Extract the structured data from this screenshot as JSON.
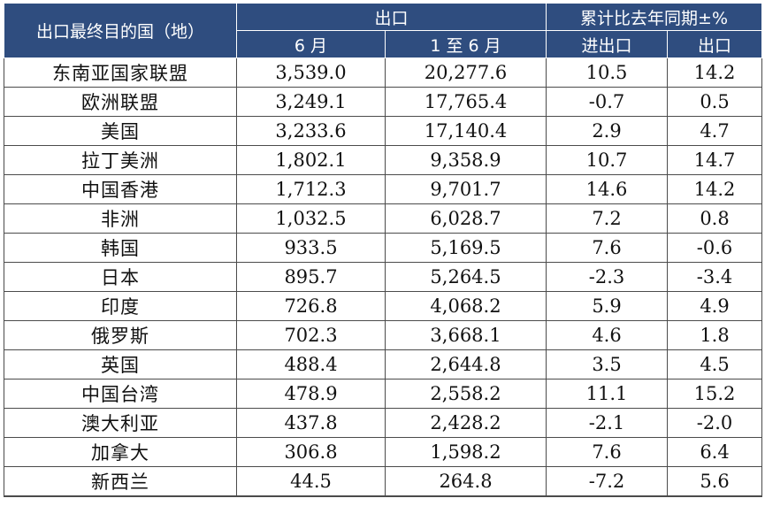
{
  "header": {
    "region": "出口最终目的国（地）",
    "export_group": "出口",
    "yoy_group": "累计比去年同期±%",
    "col_june": "6 月",
    "col_jan_june": "1 至 6 月",
    "col_trade": "进出口",
    "col_export": "出口"
  },
  "rows": [
    {
      "region": "东南亚国家联盟",
      "june": "3,539.0",
      "jan_june": "20,277.6",
      "trade": "10.5",
      "export": "14.2"
    },
    {
      "region": "欧洲联盟",
      "june": "3,249.1",
      "jan_june": "17,765.4",
      "trade": "-0.7",
      "export": "0.5"
    },
    {
      "region": "美国",
      "june": "3,233.6",
      "jan_june": "17,140.4",
      "trade": "2.9",
      "export": "4.7"
    },
    {
      "region": "拉丁美洲",
      "june": "1,802.1",
      "jan_june": "9,358.9",
      "trade": "10.7",
      "export": "14.7"
    },
    {
      "region": "中国香港",
      "june": "1,712.3",
      "jan_june": "9,701.7",
      "trade": "14.6",
      "export": "14.2"
    },
    {
      "region": "非洲",
      "june": "1,032.5",
      "jan_june": "6,028.7",
      "trade": "7.2",
      "export": "0.8"
    },
    {
      "region": "韩国",
      "june": "933.5",
      "jan_june": "5,169.5",
      "trade": "7.6",
      "export": "-0.6"
    },
    {
      "region": "日本",
      "june": "895.7",
      "jan_june": "5,264.5",
      "trade": "-2.3",
      "export": "-3.4"
    },
    {
      "region": "印度",
      "june": "726.8",
      "jan_june": "4,068.2",
      "trade": "5.9",
      "export": "4.9"
    },
    {
      "region": "俄罗斯",
      "june": "702.3",
      "jan_june": "3,668.1",
      "trade": "4.6",
      "export": "1.8"
    },
    {
      "region": "英国",
      "june": "488.4",
      "jan_june": "2,644.8",
      "trade": "3.5",
      "export": "4.5"
    },
    {
      "region": "中国台湾",
      "june": "478.9",
      "jan_june": "2,558.2",
      "trade": "11.1",
      "export": "15.2"
    },
    {
      "region": "澳大利亚",
      "june": "437.8",
      "jan_june": "2,428.2",
      "trade": "-2.1",
      "export": "-2.0"
    },
    {
      "region": "加拿大",
      "june": "306.8",
      "jan_june": "1,598.2",
      "trade": "7.6",
      "export": "6.4"
    },
    {
      "region": "新西兰",
      "june": "44.5",
      "jan_june": "264.8",
      "trade": "-7.2",
      "export": "5.6"
    }
  ]
}
